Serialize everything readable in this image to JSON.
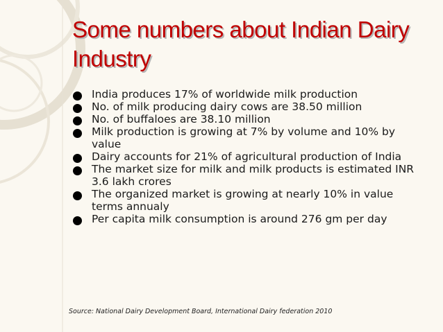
{
  "slide": {
    "title": "Some numbers about Indian Dairy Industry",
    "bullets": [
      "India produces 17% of worldwide milk production",
      "No. of milk producing dairy cows are 38.50 million",
      "No. of buffaloes are 38.10 million",
      "Milk production is growing at 7% by volume and 10% by value",
      "Dairy accounts for 21% of agricultural production of India",
      "The market size for milk and milk products is estimated INR 3.6 lakh crores",
      "The organized market is growing at nearly 10% in value terms annualy",
      "Per capita milk consumption is around 276 gm per day"
    ],
    "source": "Source: National Dairy Development  Board,  International Dairy federation 2010"
  },
  "colors": {
    "background": "#fbf8f1",
    "title": "#c00000",
    "text": "#1a1a1a",
    "bullet": "#000000"
  }
}
